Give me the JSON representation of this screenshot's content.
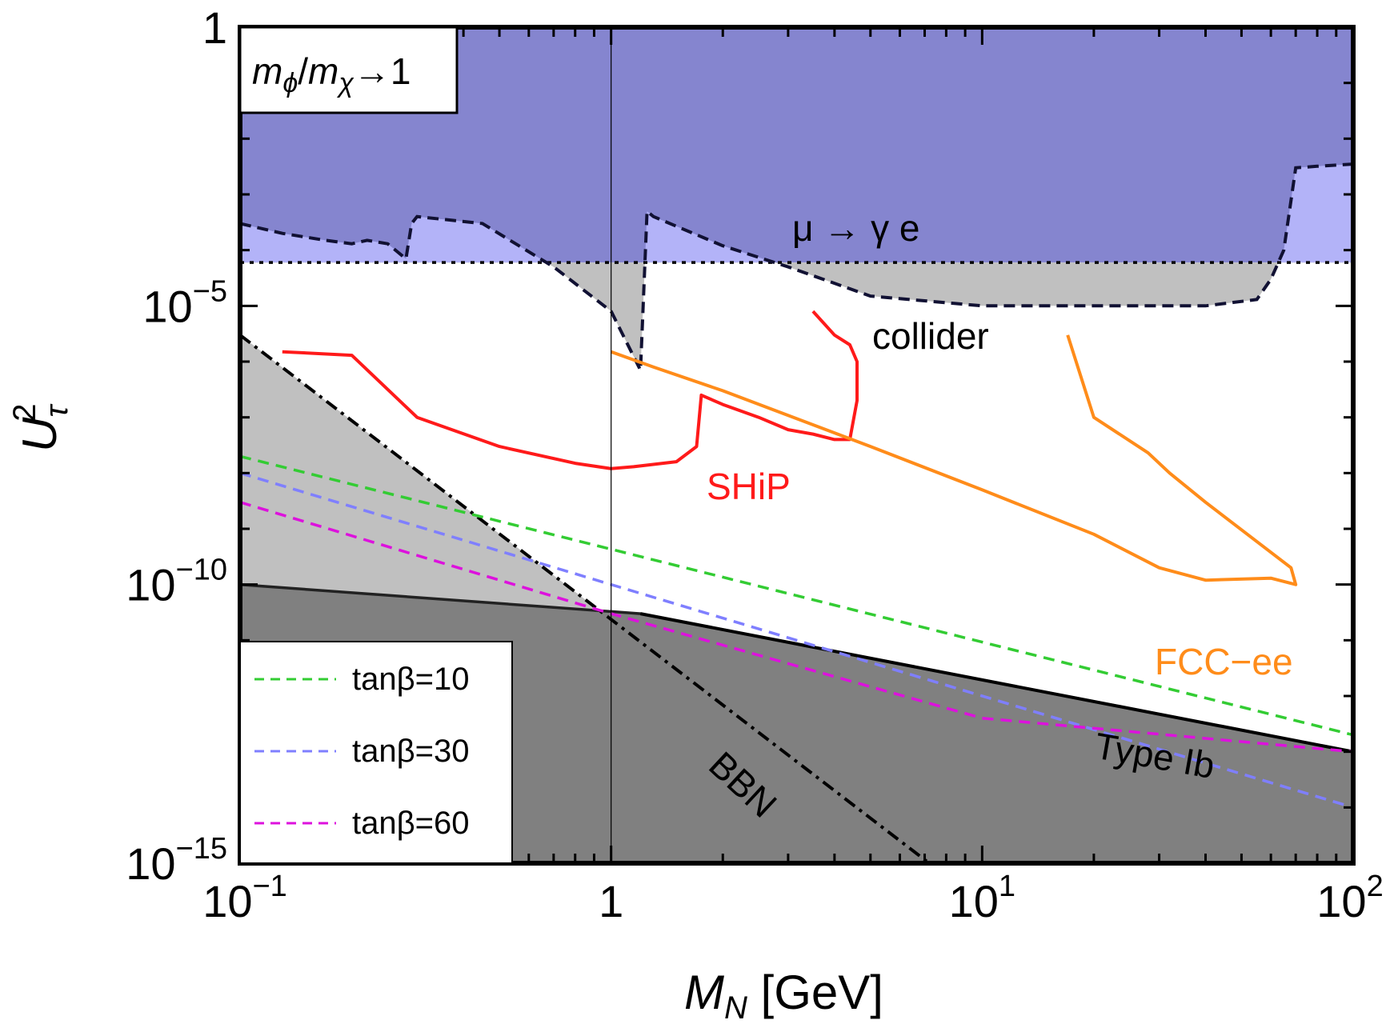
{
  "chart_data": {
    "type": "line",
    "xlabel": "M_N [GeV]",
    "ylabel": "U_τ^2",
    "x_scale": "log",
    "y_scale": "log",
    "xlim": [
      0.1,
      100
    ],
    "ylim": [
      1e-15,
      1
    ],
    "x_ticks": [
      {
        "value": 0.1,
        "base": "10",
        "exp": "−1"
      },
      {
        "value": 1,
        "base": "1",
        "exp": ""
      },
      {
        "value": 10,
        "base": "10",
        "exp": "1"
      },
      {
        "value": 100,
        "base": "10",
        "exp": "2"
      }
    ],
    "y_ticks": [
      {
        "value": 1,
        "base": "1",
        "exp": ""
      },
      {
        "value": 1e-05,
        "base": "10",
        "exp": "−5"
      },
      {
        "value": 1e-10,
        "base": "10",
        "exp": "−10"
      },
      {
        "value": 1e-15,
        "base": "10",
        "exp": "−15"
      }
    ],
    "inset_label": {
      "m1": "m",
      "sub1": "ϕ",
      "slash": "/",
      "m2": "m",
      "sub2": "χ",
      "arrow": "→1"
    },
    "annotations": {
      "mu_gamma_e": "μ → γ e",
      "collider": "collider",
      "shipp": "SHiP",
      "fcc": "FCC−ee",
      "type_ib": "Type Ib",
      "bbn": "BBN"
    },
    "colors": {
      "lfv_region": "#8585cf",
      "lfv_light": "#b3b3f8",
      "collider_region": "#c0c0c0",
      "bbn_region": "#c0c0c0",
      "typeib_region": "#808080",
      "ship": "#ff1a1a",
      "fcc": "#ff8c1a",
      "tb10": "#33cc33",
      "tb30": "#7f7fff",
      "tb60": "#dd11dd"
    },
    "series": [
      {
        "name": "tanβ=10",
        "style": "dashed",
        "color": "#33cc33",
        "x": [
          0.1,
          100
        ],
        "y": [
          2e-08,
          2e-13
        ]
      },
      {
        "name": "tanβ=30",
        "style": "dashed",
        "color": "#7f7fff",
        "x": [
          0.1,
          1,
          100
        ],
        "y": [
          1e-08,
          1e-10,
          1e-14
        ]
      },
      {
        "name": "tanβ=60",
        "style": "dashed",
        "color": "#dd11dd",
        "x": [
          0.1,
          1,
          10,
          100
        ],
        "y": [
          3e-09,
          3e-11,
          4e-13,
          1e-13
        ]
      }
    ],
    "legend": [
      {
        "label": "tanβ=10",
        "color": "#33cc33"
      },
      {
        "label": "tanβ=30",
        "color": "#7f7fff"
      },
      {
        "label": "tanβ=60",
        "color": "#dd11dd"
      }
    ],
    "curves": {
      "lfv_bound_y": 6e-05,
      "lfv_boundary": {
        "x": [
          0.1,
          0.13,
          0.17,
          0.2,
          0.22,
          0.25,
          0.28,
          0.29,
          0.3,
          0.45,
          0.7,
          1.0,
          1.2,
          1.25,
          1.3,
          2.0,
          3.0,
          5.0,
          10,
          20,
          40,
          55,
          60,
          65,
          70,
          80,
          100
        ],
        "y": [
          0.0003,
          0.0002,
          0.00015,
          0.00013,
          0.00015,
          0.00013,
          7e-05,
          0.0003,
          0.0004,
          0.0003,
          5e-05,
          8e-06,
          7e-07,
          0.0005,
          0.0004,
          0.00012,
          5e-05,
          1.5e-05,
          1e-05,
          1e-05,
          1e-05,
          1.3e-05,
          3e-05,
          0.0001,
          0.003,
          0.0032,
          0.0035
        ]
      },
      "bbn": {
        "x": [
          0.1,
          7.2
        ],
        "y": [
          3e-06,
          1e-15
        ]
      },
      "type_ib": {
        "x": [
          0.1,
          1.2,
          100
        ],
        "y": [
          1e-10,
          3e-11,
          1e-13
        ]
      },
      "ship": {
        "x": [
          0.13,
          0.2,
          0.3,
          0.5,
          0.8,
          1.0,
          1.15,
          1.5,
          1.7,
          1.75,
          2.0,
          2.5,
          3.0,
          3.5,
          4.0,
          4.4,
          4.6,
          4.6,
          4.4,
          4.0,
          3.5
        ],
        "y": [
          1.5e-06,
          1.3e-06,
          1e-07,
          3e-08,
          1.5e-08,
          1.2e-08,
          1.3e-08,
          1.6e-08,
          3e-08,
          2.5e-07,
          1.7e-07,
          1e-07,
          6e-08,
          5e-08,
          4e-08,
          4e-08,
          2e-07,
          1e-06,
          2e-06,
          3e-06,
          8e-06
        ]
      },
      "fcc": {
        "x": [
          1.0,
          1.3,
          2.0,
          5.0,
          10,
          20,
          30,
          40,
          60,
          70,
          68,
          40,
          32,
          28,
          20,
          17
        ],
        "y": [
          1.5e-06,
          8e-07,
          3e-07,
          3e-08,
          5e-09,
          8e-10,
          2e-10,
          1.2e-10,
          1.3e-10,
          1e-10,
          2e-10,
          3e-09,
          1e-08,
          2.3e-08,
          1e-07,
          3e-06
        ]
      }
    }
  }
}
